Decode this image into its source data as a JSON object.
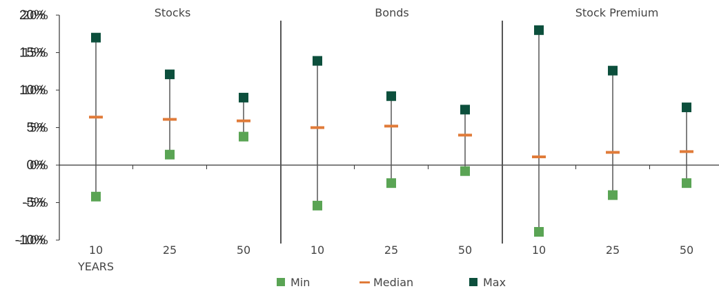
{
  "chart_data": {
    "type": "scatter",
    "groups": [
      "Stocks",
      "Bonds",
      "Stock Premium"
    ],
    "categories": [
      "10",
      "25",
      "50",
      "10",
      "25",
      "50",
      "10",
      "25",
      "50"
    ],
    "x_unit_label": "YEARS",
    "series": [
      {
        "name": "Min",
        "values": [
          -4.2,
          1.4,
          3.8,
          -5.4,
          -2.4,
          -0.8,
          -8.9,
          -4.0,
          -2.4
        ]
      },
      {
        "name": "Median",
        "values": [
          6.4,
          6.1,
          5.9,
          5.0,
          5.2,
          4.0,
          1.1,
          1.7,
          1.8
        ]
      },
      {
        "name": "Max",
        "values": [
          17.0,
          12.1,
          9.0,
          13.9,
          9.2,
          7.4,
          18.0,
          12.6,
          7.7
        ]
      }
    ],
    "ylim": [
      -10,
      20
    ],
    "yticks": [
      20,
      15,
      10,
      5,
      0,
      -5,
      -10
    ],
    "ytick_labels": [
      "20%",
      "15%",
      "10%",
      "5%",
      "0%",
      "-5%",
      "-10%"
    ],
    "legend_position": "bottom",
    "colors": {
      "Min": "#5aa454",
      "Median": "#e07b39",
      "Max": "#0c4f3c",
      "axis": "#333333",
      "range_line": "#555555"
    }
  }
}
